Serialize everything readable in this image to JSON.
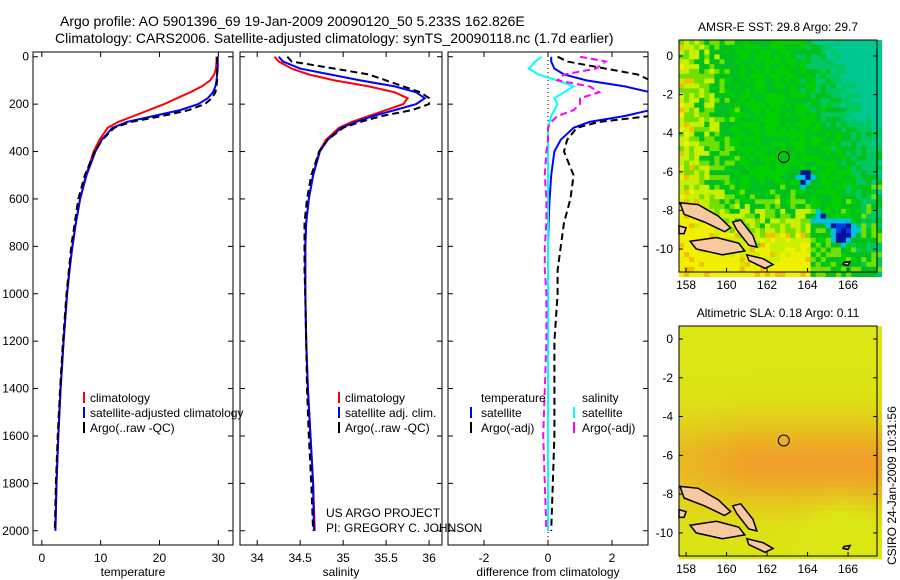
{
  "header": {
    "line1": "Argo profile: AO 5901396_69 19-Jan-2009 20090120_50 5.233S 162.826E",
    "line2": "Climatology: CARS2006. Satellite-adjusted climatology: synTS_20090118.nc (1.7d earlier)"
  },
  "credits": {
    "project": "US ARGO PROJECT",
    "pi": "PI: GREGORY C. JOHNSON",
    "stamp": "CSIRO 24-Jan-2009 10:31:56"
  },
  "colors": {
    "climatology": "#ff0000",
    "satellite": "#0000ff",
    "argo": "#000000",
    "sal_satellite": "#00ffff",
    "sal_argo": "#ff00ff"
  },
  "chart_data": [
    {
      "type": "line",
      "id": "temperature",
      "xlabel": "temperature",
      "ylabel": "",
      "xlim": [
        -1.5,
        32.5
      ],
      "ylim": [
        2060,
        -20
      ],
      "y_reversed": true,
      "xticks": [
        0,
        10,
        20,
        30
      ],
      "yticks": [
        0,
        200,
        400,
        600,
        800,
        1000,
        1200,
        1400,
        1600,
        1800,
        2000
      ],
      "depth": [
        0,
        20,
        50,
        75,
        100,
        125,
        150,
        175,
        200,
        225,
        250,
        275,
        300,
        350,
        400,
        500,
        600,
        700,
        800,
        900,
        1000,
        1200,
        1400,
        1600,
        1800,
        2000
      ],
      "legend": [
        "climatology",
        "satellite-adjusted climatology",
        "Argo(..raw -QC)"
      ],
      "series": [
        {
          "name": "climatology",
          "color": "#ff0000",
          "dash": false,
          "values": [
            29.7,
            29.7,
            29.6,
            29.3,
            28.6,
            27.2,
            25.2,
            23.0,
            20.8,
            18.2,
            15.6,
            13.0,
            11.2,
            9.8,
            8.8,
            7.5,
            6.5,
            5.8,
            5.2,
            4.7,
            4.3,
            3.7,
            3.2,
            2.8,
            2.5,
            2.3
          ]
        },
        {
          "name": "satellite-adjusted climatology",
          "color": "#0000ff",
          "dash": false,
          "values": [
            29.9,
            29.9,
            29.9,
            29.8,
            29.7,
            29.5,
            29.1,
            28.2,
            26.6,
            23.5,
            19.0,
            14.5,
            12.0,
            10.2,
            9.1,
            7.6,
            6.5,
            5.8,
            5.2,
            4.7,
            4.3,
            3.7,
            3.2,
            2.8,
            2.5,
            2.3
          ]
        },
        {
          "name": "Argo(..raw -QC)",
          "color": "#000000",
          "dash": true,
          "values": [
            29.8,
            29.8,
            29.8,
            29.8,
            29.8,
            29.7,
            29.5,
            28.9,
            27.7,
            25.0,
            20.5,
            15.2,
            12.3,
            10.3,
            9.0,
            7.3,
            6.2,
            5.6,
            5.0,
            4.6,
            4.2,
            3.6,
            3.1,
            2.7,
            2.4,
            2.2
          ]
        }
      ]
    },
    {
      "type": "line",
      "id": "salinity",
      "xlabel": "salinity",
      "xlim": [
        33.8,
        36.15
      ],
      "ylim": [
        2060,
        -20
      ],
      "y_reversed": true,
      "xticks": [
        34,
        34.5,
        35,
        35.5,
        36
      ],
      "depth": [
        0,
        20,
        50,
        75,
        100,
        125,
        150,
        175,
        200,
        225,
        250,
        275,
        300,
        350,
        400,
        500,
        600,
        700,
        800,
        900,
        1000,
        1200,
        1400,
        1600,
        1800,
        2000
      ],
      "legend": [
        "climatology",
        "satellite adj. clim.",
        "Argo(..raw -QC)"
      ],
      "series": [
        {
          "name": "climatology",
          "color": "#ff0000",
          "dash": false,
          "values": [
            34.2,
            34.25,
            34.4,
            34.6,
            34.9,
            35.3,
            35.6,
            35.75,
            35.7,
            35.5,
            35.3,
            35.1,
            34.95,
            34.8,
            34.72,
            34.65,
            34.6,
            34.57,
            34.56,
            34.56,
            34.56,
            34.57,
            34.59,
            34.62,
            34.65,
            34.67
          ]
        },
        {
          "name": "satellite adj. clim.",
          "color": "#0000ff",
          "dash": false,
          "values": [
            34.25,
            34.3,
            34.5,
            34.85,
            35.2,
            35.6,
            35.85,
            35.95,
            35.85,
            35.6,
            35.35,
            35.15,
            34.98,
            34.82,
            34.73,
            34.65,
            34.6,
            34.57,
            34.56,
            34.56,
            34.56,
            34.57,
            34.59,
            34.62,
            34.65,
            34.66
          ]
        },
        {
          "name": "Argo(..raw -QC)",
          "color": "#000000",
          "dash": true,
          "values": [
            34.35,
            34.4,
            34.9,
            35.3,
            35.5,
            35.7,
            35.9,
            36.0,
            36.0,
            35.8,
            35.45,
            35.2,
            35.0,
            34.82,
            34.72,
            34.63,
            34.58,
            34.55,
            34.55,
            34.55,
            34.56,
            34.57,
            34.58,
            34.6,
            34.63,
            34.65
          ]
        }
      ]
    },
    {
      "type": "line",
      "id": "difference",
      "xlabel": "difference from climatology",
      "xlim": [
        -3.125,
        3.125
      ],
      "ylim": [
        2060,
        -20
      ],
      "y_reversed": true,
      "xticks": [
        -2,
        0,
        2
      ],
      "depth": [
        0,
        20,
        50,
        75,
        100,
        125,
        150,
        175,
        200,
        225,
        250,
        275,
        300,
        350,
        400,
        500,
        600,
        700,
        800,
        900,
        1000,
        1200,
        1400,
        1600,
        1800,
        2000
      ],
      "legend": {
        "temperature_header": "temperature",
        "salinity_header": "salinity",
        "items": [
          "satellite",
          "Argo(-adj)",
          "satellite",
          "Argo(-adj)"
        ]
      },
      "series": [
        {
          "name": "temperature satellite",
          "color": "#0000ff",
          "dash": false,
          "values": [
            0.1,
            0.1,
            0.2,
            0.5,
            1.2,
            2.4,
            3.2,
            3.2,
            3.2,
            3.2,
            2.4,
            1.3,
            0.8,
            0.4,
            0.2,
            0.1,
            0.05,
            0.02,
            0.0,
            0.0,
            0.0,
            0.0,
            0.0,
            0.0,
            0.0,
            0.0
          ]
        },
        {
          "name": "temperature Argo(-adj)",
          "color": "#000000",
          "dash": true,
          "values": [
            0.3,
            0.6,
            1.8,
            2.8,
            3.2,
            3.2,
            3.2,
            3.2,
            3.2,
            3.2,
            3.2,
            1.6,
            0.9,
            0.6,
            0.5,
            0.8,
            0.7,
            0.5,
            0.4,
            0.3,
            0.3,
            0.2,
            0.2,
            0.2,
            0.15,
            0.1
          ]
        },
        {
          "name": "salinity satellite",
          "color": "#00ffff",
          "dash": false,
          "values": [
            -0.2,
            -0.4,
            -0.6,
            -0.3,
            0.3,
            0.8,
            0.5,
            0.2,
            0.3,
            0.2,
            0.1,
            0.05,
            0.0,
            0.0,
            0.0,
            0.0,
            0.0,
            0.0,
            0.0,
            0.0,
            0.0,
            0.0,
            0.0,
            0.0,
            0.0,
            0.0
          ]
        },
        {
          "name": "salinity Argo(-adj)",
          "color": "#ff00ff",
          "dash": true,
          "values": [
            1.0,
            1.8,
            1.5,
            0.5,
            0.3,
            1.3,
            1.6,
            1.0,
            1.0,
            0.8,
            0.3,
            0.1,
            0.0,
            0.0,
            -0.05,
            -0.1,
            -0.05,
            -0.05,
            -0.1,
            -0.1,
            -0.05,
            -0.05,
            -0.1,
            -0.15,
            -0.1,
            -0.05
          ]
        }
      ]
    },
    {
      "type": "heatmap",
      "id": "sst_map",
      "title": "AMSR-E SST: 29.8 Argo: 29.7",
      "xlim": [
        157.65,
        167.43
      ],
      "ylim": [
        -11.19,
        0.83
      ],
      "xticks": [
        158,
        160,
        162,
        164,
        166
      ],
      "yticks": [
        0,
        -2,
        -4,
        -6,
        -8,
        -10
      ],
      "marker": {
        "lon": 162.826,
        "lat": -5.233
      }
    },
    {
      "type": "heatmap",
      "id": "sla_map",
      "title": "Altimetric SLA: 0.18 Argo: 0.11",
      "xlim": [
        157.65,
        167.43
      ],
      "ylim": [
        -11.19,
        0.67
      ],
      "xticks": [
        158,
        160,
        162,
        164,
        166
      ],
      "yticks": [
        0,
        -2,
        -4,
        -6,
        -8,
        -10
      ],
      "marker": {
        "lon": 162.826,
        "lat": -5.233
      }
    }
  ]
}
